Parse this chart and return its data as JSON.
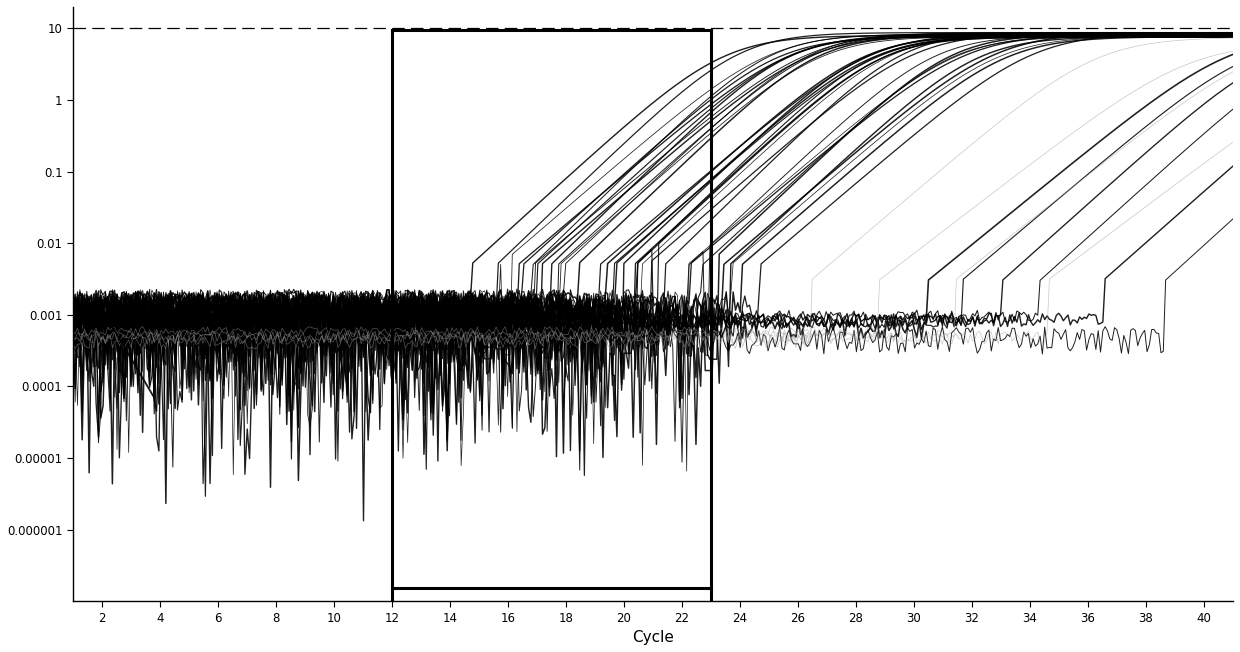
{
  "xlim": [
    1,
    41
  ],
  "ylim_log": [
    1e-07,
    20
  ],
  "ytick_labels": [
    "0.000001",
    "0.00001",
    "0.0001",
    "0.001",
    "0.01",
    "0.1",
    "1",
    "10"
  ],
  "xticks": [
    2,
    4,
    6,
    8,
    10,
    12,
    14,
    16,
    18,
    20,
    22,
    24,
    26,
    28,
    30,
    32,
    34,
    36,
    38,
    40
  ],
  "xlabel": "Cycle",
  "dashed_line_y": 10,
  "rect_x1": 12,
  "rect_x2": 23,
  "background_color": "#ffffff",
  "line_color_main": "#000000",
  "saturation": 8.5,
  "baseline": 0.001
}
